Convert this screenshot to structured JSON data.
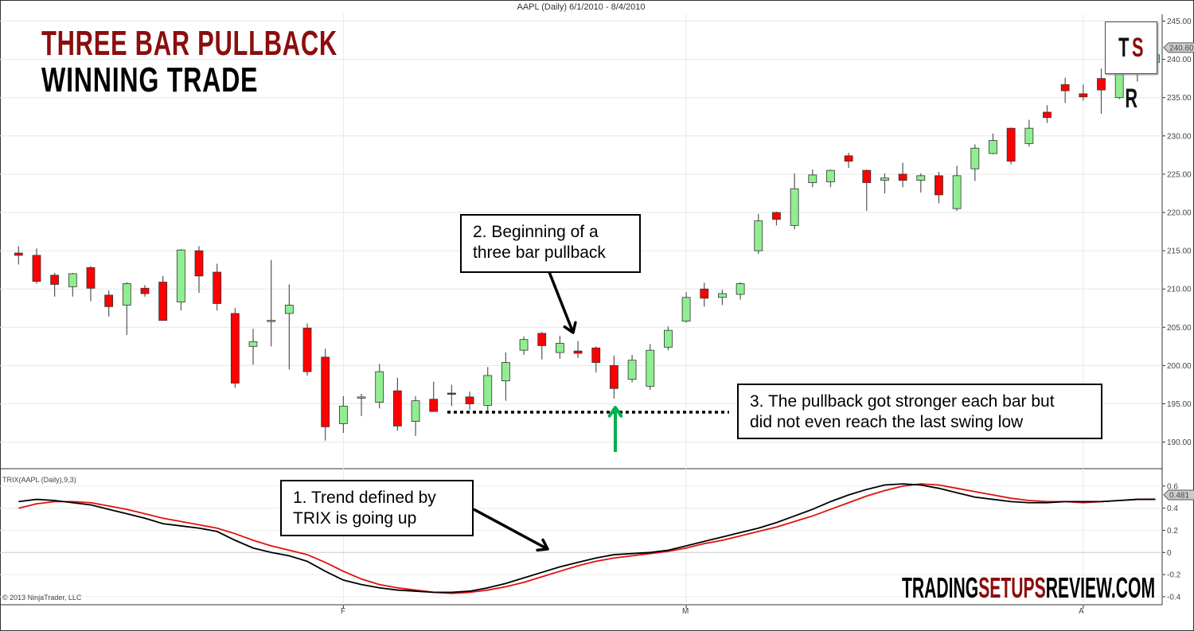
{
  "header": {
    "title": "AAPL (Daily)  6/1/2010 - 8/4/2010"
  },
  "annotations": {
    "headline": "THREE BAR PULLBACK",
    "subheadline": "WINNING TRADE",
    "note1": [
      "1. Trend defined by",
      "TRIX is going up"
    ],
    "note2": [
      "2. Beginning  of a",
      "three bar pullback"
    ],
    "note3": [
      "3. The pullback  got stronger each bar but",
      "did not even reach the last swing  low"
    ],
    "logo": "TSR",
    "brand_prefix": "TRADING",
    "brand_highlight": "SETUPS",
    "brand_suffix": "REVIEW.COM",
    "copyright": "© 2013 NinjaTrader, LLC"
  },
  "colors": {
    "up": "#90ee90",
    "down": "#ff0000",
    "headline": "#8b0d0d",
    "trix": "#000000",
    "signal": "#e01010",
    "arrow_green": "#00b050"
  },
  "chart_data": [
    {
      "type": "candlestick",
      "title": "AAPL (Daily)  6/1/2010 - 8/4/2010",
      "ylim": [
        188,
        245
      ],
      "y_ticks": [
        "190.00",
        "195.00",
        "200.00",
        "205.00",
        "210.00",
        "215.00",
        "220.00",
        "225.00",
        "230.00",
        "235.00",
        "240.00",
        "245.00"
      ],
      "x_tick_labels": [
        {
          "label": "F",
          "index": 18
        },
        {
          "label": "M",
          "index": 37
        },
        {
          "label": "A",
          "index": 59
        }
      ],
      "last_value": "240.60",
      "grid": true,
      "ohlc": [
        [
          214.7,
          215.6,
          213.2,
          214.4
        ],
        [
          214.4,
          215.3,
          210.7,
          211.0
        ],
        [
          211.8,
          212.1,
          209.0,
          210.6
        ],
        [
          210.3,
          212.1,
          209.0,
          212.0
        ],
        [
          212.8,
          213.0,
          208.4,
          210.1
        ],
        [
          209.2,
          209.8,
          206.4,
          207.7
        ],
        [
          207.9,
          210.9,
          204.0,
          210.7
        ],
        [
          210.1,
          210.5,
          209.0,
          209.4
        ],
        [
          210.9,
          211.7,
          205.9,
          205.9
        ],
        [
          208.3,
          215.2,
          207.2,
          215.1
        ],
        [
          215.0,
          215.6,
          209.5,
          211.7
        ],
        [
          212.2,
          213.3,
          207.2,
          208.1
        ],
        [
          206.8,
          207.5,
          197.1,
          197.7
        ],
        [
          202.5,
          204.8,
          200.1,
          203.1
        ],
        [
          205.9,
          213.8,
          202.5,
          205.9
        ],
        [
          206.8,
          210.6,
          199.5,
          207.9
        ],
        [
          204.9,
          205.5,
          198.7,
          199.2
        ],
        [
          201.1,
          202.2,
          190.2,
          192.0
        ],
        [
          192.4,
          196.0,
          191.2,
          194.7
        ],
        [
          195.9,
          196.3,
          193.4,
          195.9
        ],
        [
          195.2,
          200.2,
          194.4,
          199.2
        ],
        [
          196.7,
          198.4,
          191.5,
          192.1
        ],
        [
          192.7,
          196.0,
          190.8,
          195.4
        ],
        [
          195.6,
          197.9,
          194.0,
          194.0
        ],
        [
          196.4,
          197.5,
          194.7,
          196.3
        ],
        [
          195.9,
          196.6,
          194.2,
          195.0
        ],
        [
          194.8,
          199.8,
          194.0,
          198.7
        ],
        [
          198.0,
          201.7,
          195.4,
          200.4
        ],
        [
          202.0,
          203.8,
          201.4,
          203.4
        ],
        [
          204.2,
          204.4,
          200.8,
          202.6
        ],
        [
          201.7,
          203.9,
          200.9,
          202.9
        ],
        [
          201.9,
          203.2,
          201.0,
          201.6
        ],
        [
          202.3,
          202.5,
          199.1,
          200.4
        ],
        [
          200.0,
          201.3,
          195.7,
          197.0
        ],
        [
          198.2,
          201.4,
          197.8,
          200.7
        ],
        [
          197.3,
          202.8,
          196.8,
          202.0
        ],
        [
          202.4,
          205.1,
          202.0,
          204.6
        ],
        [
          205.8,
          209.6,
          205.6,
          208.9
        ],
        [
          210.0,
          210.8,
          207.7,
          208.8
        ],
        [
          208.9,
          209.9,
          207.9,
          209.4
        ],
        [
          209.3,
          210.9,
          208.6,
          210.7
        ],
        [
          215.0,
          219.8,
          214.6,
          218.9
        ],
        [
          220.0,
          220.1,
          218.3,
          219.1
        ],
        [
          218.3,
          225.1,
          217.8,
          223.1
        ],
        [
          223.9,
          225.6,
          223.3,
          224.9
        ],
        [
          224.0,
          225.6,
          223.3,
          225.5
        ],
        [
          227.4,
          227.8,
          225.8,
          226.7
        ],
        [
          225.5,
          225.6,
          220.2,
          223.9
        ],
        [
          224.2,
          225.1,
          222.5,
          224.5
        ],
        [
          225.0,
          226.5,
          223.3,
          224.2
        ],
        [
          224.2,
          225.1,
          222.6,
          224.8
        ],
        [
          224.8,
          225.3,
          221.2,
          222.3
        ],
        [
          220.5,
          226.1,
          220.2,
          224.8
        ],
        [
          225.7,
          228.9,
          224.1,
          228.4
        ],
        [
          227.7,
          230.3,
          227.6,
          229.4
        ],
        [
          231.0,
          231.1,
          226.3,
          226.7
        ],
        [
          229.0,
          232.1,
          228.6,
          231.0
        ],
        [
          233.1,
          234.0,
          231.7,
          232.4
        ],
        [
          236.7,
          237.6,
          234.3,
          235.9
        ],
        [
          235.5,
          236.7,
          234.6,
          235.1
        ],
        [
          237.5,
          238.8,
          232.9,
          236.0
        ],
        [
          235.0,
          241.0,
          234.8,
          240.2
        ],
        [
          240.0,
          241.5,
          237.1,
          239.5
        ],
        [
          239.6,
          241.0,
          239.4,
          240.6
        ]
      ]
    },
    {
      "type": "line",
      "title": "TRIX(AAPL (Daily),9,3)",
      "ylim": [
        -0.45,
        0.72
      ],
      "y_ticks": [
        "0.6",
        "0.4",
        "0.2",
        "0",
        "-0.2",
        "-0.4"
      ],
      "last_value": "0.481",
      "series": [
        {
          "values": [
            0.46,
            0.48,
            0.47,
            0.45,
            0.43,
            0.39,
            0.35,
            0.31,
            0.26,
            0.24,
            0.22,
            0.19,
            0.11,
            0.04,
            0.0,
            -0.03,
            -0.08,
            -0.17,
            -0.25,
            -0.29,
            -0.32,
            -0.34,
            -0.35,
            -0.36,
            -0.36,
            -0.35,
            -0.32,
            -0.28,
            -0.23,
            -0.18,
            -0.13,
            -0.09,
            -0.05,
            -0.02,
            -0.01,
            0.0,
            0.02,
            0.06,
            0.1,
            0.14,
            0.18,
            0.22,
            0.27,
            0.33,
            0.39,
            0.46,
            0.52,
            0.57,
            0.61,
            0.62,
            0.61,
            0.58,
            0.54,
            0.5,
            0.48,
            0.46,
            0.45,
            0.45,
            0.46,
            0.46,
            0.46,
            0.47,
            0.48,
            0.481
          ]
        },
        {
          "values": [
            0.4,
            0.44,
            0.46,
            0.46,
            0.45,
            0.42,
            0.39,
            0.35,
            0.31,
            0.28,
            0.25,
            0.22,
            0.17,
            0.11,
            0.06,
            0.02,
            -0.02,
            -0.09,
            -0.17,
            -0.24,
            -0.29,
            -0.32,
            -0.34,
            -0.36,
            -0.37,
            -0.36,
            -0.34,
            -0.31,
            -0.27,
            -0.22,
            -0.17,
            -0.12,
            -0.08,
            -0.05,
            -0.03,
            -0.01,
            0.01,
            0.04,
            0.08,
            0.11,
            0.15,
            0.19,
            0.23,
            0.28,
            0.33,
            0.39,
            0.45,
            0.51,
            0.56,
            0.6,
            0.62,
            0.61,
            0.58,
            0.55,
            0.52,
            0.49,
            0.47,
            0.46,
            0.46,
            0.45,
            0.46,
            0.47,
            0.48,
            0.48
          ]
        }
      ]
    }
  ]
}
